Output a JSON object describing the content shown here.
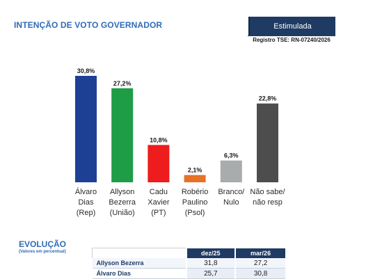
{
  "header": {
    "title": "INTENÇÃO DE VOTO GOVERNADOR",
    "badge": "Estimulada",
    "registry": "Registro TSE: RN-07240/2026"
  },
  "chart_data": {
    "type": "bar",
    "categories": [
      [
        "Álvaro",
        "Dias",
        "(Rep)"
      ],
      [
        "Allyson",
        "Bezerra",
        "(União)"
      ],
      [
        "Cadu",
        "Xavier",
        "(PT)"
      ],
      [
        "Robério",
        "Paulino",
        "(Psol)"
      ],
      [
        "Branco/",
        "Nulo"
      ],
      [
        "Não sabe/",
        "não resp"
      ]
    ],
    "values": [
      30.8,
      27.2,
      10.8,
      2.1,
      6.3,
      22.8
    ],
    "value_labels": [
      "30,8%",
      "27,2%",
      "10,8%",
      "2,1%",
      "6,3%",
      "22,8%"
    ],
    "colors": [
      "#1e4094",
      "#1e9c46",
      "#ee1c1c",
      "#e67127",
      "#a8acad",
      "#4d4d4d"
    ],
    "ylim": [
      0,
      30.8
    ],
    "grid": false,
    "title": "",
    "xlabel": "",
    "ylabel": ""
  },
  "evolution": {
    "title": "EVOLUÇÃO",
    "subtitle": "(Valores em percentual)",
    "columns": [
      "dez/25",
      "mar/26"
    ],
    "rows": [
      {
        "name": "Allyson Bezerra",
        "values": [
          "31,8",
          "27,2"
        ]
      },
      {
        "name": "Álvaro Dias",
        "values": [
          "25,7",
          "30,8"
        ]
      }
    ]
  }
}
